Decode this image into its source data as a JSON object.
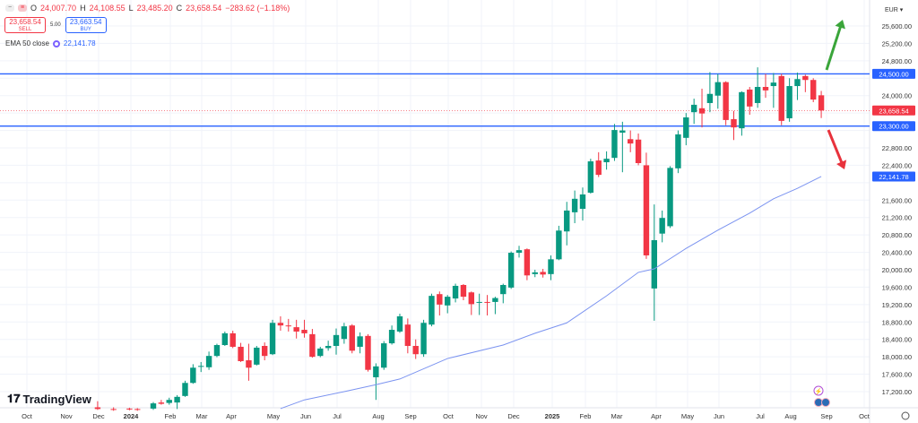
{
  "header": {
    "open_label": "O",
    "open": "24,007.70",
    "high_label": "H",
    "high": "24,108.55",
    "low_label": "L",
    "low": "23,485.20",
    "close_label": "C",
    "close": "23,658.54",
    "change": "−283.62 (−1.18%)"
  },
  "trade": {
    "sell_price": "23,658.54",
    "sell_label": "SELL",
    "spread": "5.00",
    "buy_price": "23,663.54",
    "buy_label": "BUY"
  },
  "indicator": {
    "label": "EMA 50 close",
    "value": "22,141.78"
  },
  "currency": "EUR",
  "brand": "TradingView",
  "colors": {
    "up": "#089981",
    "down": "#f23645",
    "ema": "#7b93f0",
    "level_line": "#2962ff",
    "grid": "#f0f3fa"
  },
  "chart_data": {
    "type": "candlestick",
    "interval": "weekly",
    "ylim": [
      16900,
      25800
    ],
    "grid": true,
    "y_ticks": [
      "25,600.00",
      "25,200.00",
      "24,800.00",
      "24,000.00",
      "22,800.00",
      "22,400.00",
      "21,600.00",
      "21,200.00",
      "20,800.00",
      "20,400.00",
      "20,000.00",
      "19,600.00",
      "19,200.00",
      "18,800.00",
      "18,400.00",
      "18,000.00",
      "17,600.00",
      "17,200.00"
    ],
    "x_ticks": [
      "Oct",
      "Nov",
      "Dec",
      "2024",
      "Feb",
      "Mar",
      "Apr",
      "May",
      "Jun",
      "Jul",
      "Aug",
      "Sep",
      "Oct",
      "Nov",
      "Dec",
      "2025",
      "Feb",
      "Mar",
      "Apr",
      "May",
      "Jun",
      "Jul",
      "Aug",
      "Sep",
      "Oct"
    ],
    "levels": [
      {
        "value": 24500,
        "label": "24,500.00"
      },
      {
        "value": 23300,
        "label": "23,300.00"
      }
    ],
    "last_price": {
      "value": 23658.54,
      "label": "23,658.54"
    },
    "ema_last": {
      "value": 22141.78,
      "label": "22,141.78"
    },
    "annotations": [
      {
        "type": "arrow-up",
        "color": "#3aa53a"
      },
      {
        "type": "arrow-down",
        "color": "#e8323c"
      }
    ],
    "candles_ohlc_ema": [
      [
        16840,
        16980,
        16780,
        16800,
        null
      ],
      null,
      [
        16800,
        16840,
        16760,
        16790,
        null
      ],
      null,
      [
        16810,
        16830,
        16770,
        16790,
        null
      ],
      [
        16800,
        16820,
        16760,
        16780,
        null
      ],
      null,
      [
        16810,
        16960,
        16780,
        16930,
        null
      ],
      [
        16950,
        17010,
        16900,
        16920,
        null
      ],
      [
        16940,
        17060,
        16900,
        17010,
        null
      ],
      [
        16950,
        17120,
        16800,
        17080,
        null
      ],
      [
        17100,
        17450,
        17080,
        17400,
        null
      ],
      [
        17400,
        17830,
        17380,
        17750,
        null
      ],
      [
        17770,
        17880,
        17650,
        17790,
        null
      ],
      [
        17760,
        18120,
        17700,
        18020,
        null
      ],
      [
        18020,
        18300,
        17990,
        18270,
        null
      ],
      [
        18270,
        18580,
        18250,
        18540,
        null
      ],
      [
        18540,
        18600,
        18200,
        18230,
        null
      ],
      [
        18230,
        18320,
        17880,
        17900,
        null
      ],
      [
        17920,
        18300,
        17450,
        17750,
        null
      ],
      [
        17820,
        18250,
        17800,
        18210,
        null
      ],
      [
        18250,
        18330,
        17920,
        18020,
        null
      ],
      [
        18060,
        18850,
        18040,
        18780,
        null
      ],
      [
        18780,
        18930,
        18600,
        18720,
        16810
      ],
      [
        18720,
        18870,
        18580,
        18700,
        null
      ],
      [
        18680,
        18850,
        18420,
        18580,
        null
      ],
      [
        18620,
        18850,
        18440,
        18540,
        17010
      ],
      [
        18520,
        18640,
        17980,
        18000,
        null
      ],
      [
        18020,
        18230,
        17990,
        18190,
        null
      ],
      [
        18200,
        18370,
        18140,
        18250,
        null
      ],
      [
        18250,
        18650,
        18050,
        18500,
        null
      ],
      [
        18410,
        18780,
        18300,
        18700,
        17200
      ],
      [
        18720,
        18750,
        18080,
        18140,
        null
      ],
      [
        18230,
        18560,
        18080,
        18470,
        null
      ],
      [
        18480,
        18520,
        17660,
        17700,
        null
      ],
      [
        17530,
        17850,
        17010,
        17780,
        17360
      ],
      [
        17750,
        18360,
        17700,
        18310,
        null
      ],
      [
        18310,
        18720,
        18280,
        18620,
        null
      ],
      [
        18580,
        18990,
        18550,
        18930,
        17490
      ],
      [
        18740,
        18880,
        18080,
        18250,
        null
      ],
      [
        18250,
        18400,
        17950,
        18060,
        null
      ],
      [
        18060,
        18850,
        18000,
        18780,
        null
      ],
      [
        18740,
        19450,
        18700,
        19400,
        null
      ],
      [
        19440,
        19500,
        18950,
        19200,
        null
      ],
      [
        19180,
        19420,
        19000,
        19380,
        17960
      ],
      [
        19340,
        19680,
        19250,
        19630,
        null
      ],
      [
        19650,
        19670,
        19300,
        19380,
        null
      ],
      [
        19480,
        19500,
        18960,
        19210,
        null
      ],
      [
        19240,
        19450,
        18960,
        19260,
        null
      ],
      [
        19260,
        19420,
        18950,
        19240,
        null
      ],
      [
        19260,
        19380,
        18980,
        19350,
        null
      ],
      [
        19440,
        19680,
        19230,
        19650,
        18270
      ],
      [
        19590,
        20420,
        19560,
        20390,
        null
      ],
      [
        20390,
        20550,
        20280,
        20450,
        null
      ],
      [
        20470,
        20490,
        19760,
        19870,
        null
      ],
      [
        19900,
        20000,
        19830,
        19940,
        18540
      ],
      [
        19950,
        20020,
        19820,
        19890,
        null
      ],
      [
        19900,
        20330,
        19760,
        20240,
        null
      ],
      [
        20240,
        21010,
        20220,
        20900,
        null
      ],
      [
        20880,
        21560,
        20560,
        21360,
        18780
      ],
      [
        21320,
        21820,
        21070,
        21630,
        null
      ],
      [
        21400,
        21890,
        21130,
        21730,
        null
      ],
      [
        21770,
        22550,
        21750,
        22490,
        null
      ],
      [
        22510,
        22700,
        22130,
        22180,
        null
      ],
      [
        22470,
        22720,
        22300,
        22550,
        19400
      ],
      [
        22570,
        23350,
        22500,
        23210,
        null
      ],
      [
        23150,
        23400,
        22240,
        23200,
        null
      ],
      [
        23000,
        23200,
        22700,
        22900,
        null
      ],
      [
        22990,
        23130,
        22400,
        22450,
        19940
      ],
      [
        22400,
        22690,
        20250,
        20330,
        null
      ],
      [
        19570,
        21500,
        18830,
        20680,
        20020
      ],
      [
        20830,
        21360,
        20630,
        21190,
        null
      ],
      [
        21000,
        22380,
        20960,
        22340,
        null
      ],
      [
        22330,
        23200,
        22220,
        23110,
        null
      ],
      [
        23030,
        23600,
        22860,
        23500,
        20490
      ],
      [
        23620,
        23930,
        23350,
        23790,
        null
      ],
      [
        23710,
        24160,
        23270,
        23590,
        null
      ],
      [
        23830,
        24540,
        23620,
        24040,
        null
      ],
      [
        24000,
        24500,
        23700,
        24310,
        20910
      ],
      [
        24310,
        24330,
        23320,
        23440,
        null
      ],
      [
        23460,
        23650,
        22980,
        23270,
        null
      ],
      [
        23250,
        24100,
        23080,
        24080,
        null
      ],
      [
        24140,
        24200,
        23560,
        23750,
        21300
      ],
      [
        23830,
        24650,
        23720,
        24200,
        null
      ],
      [
        24200,
        24500,
        23950,
        24120,
        null
      ],
      [
        24220,
        24520,
        23720,
        24300,
        21630
      ],
      [
        24450,
        24500,
        23320,
        23420,
        null
      ],
      [
        23480,
        24400,
        23400,
        24220,
        null
      ],
      [
        24220,
        24530,
        23900,
        24380,
        21870
      ],
      [
        24450,
        24480,
        24080,
        24360,
        null
      ],
      [
        24360,
        24400,
        23850,
        23910,
        null
      ],
      [
        24007.7,
        24108.55,
        23485.2,
        23658.54,
        22141.78
      ]
    ]
  }
}
